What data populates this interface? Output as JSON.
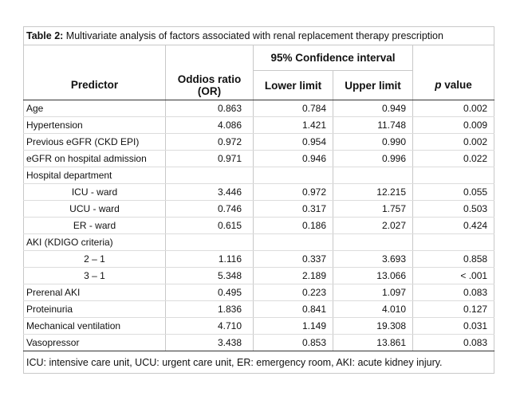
{
  "caption": {
    "label": "Table 2:",
    "text": "Multivariate analysis of factors associated with renal replacement therapy prescription"
  },
  "header": {
    "ci_group": "95% Confidence interval",
    "predictor": "Predictor",
    "odds_ratio": "Oddios ratio (OR)",
    "lower": "Lower limit",
    "upper": "Upper limit",
    "p_value_italic": "p",
    "p_value_rest": " value"
  },
  "rows": [
    {
      "predictor": "Age",
      "indent": false,
      "or": "0.863",
      "lower": "0.784",
      "upper": "0.949",
      "p": "0.002"
    },
    {
      "predictor": "Hypertension",
      "indent": false,
      "or": "4.086",
      "lower": "1.421",
      "upper": "11.748",
      "p": "0.009"
    },
    {
      "predictor": "Previous eGFR (CKD EPI)",
      "indent": false,
      "or": "0.972",
      "lower": "0.954",
      "upper": "0.990",
      "p": "0.002"
    },
    {
      "predictor": "eGFR on hospital admission",
      "indent": false,
      "or": "0.971",
      "lower": "0.946",
      "upper": "0.996",
      "p": "0.022"
    },
    {
      "predictor": "Hospital department",
      "indent": false,
      "or": "",
      "lower": "",
      "upper": "",
      "p": ""
    },
    {
      "predictor": "ICU - ward",
      "indent": true,
      "or": "3.446",
      "lower": "0.972",
      "upper": "12.215",
      "p": "0.055"
    },
    {
      "predictor": "UCU - ward",
      "indent": true,
      "or": "0.746",
      "lower": "0.317",
      "upper": "1.757",
      "p": "0.503"
    },
    {
      "predictor": "ER - ward",
      "indent": true,
      "or": "0.615",
      "lower": "0.186",
      "upper": "2.027",
      "p": "0.424"
    },
    {
      "predictor": "AKI (KDIGO criteria)",
      "indent": false,
      "or": "",
      "lower": "",
      "upper": "",
      "p": ""
    },
    {
      "predictor": "2 – 1",
      "indent": true,
      "or": "1.116",
      "lower": "0.337",
      "upper": "3.693",
      "p": "0.858"
    },
    {
      "predictor": "3 – 1",
      "indent": true,
      "or": "5.348",
      "lower": "2.189",
      "upper": "13.066",
      "p": "< .001"
    },
    {
      "predictor": "Prerenal AKI",
      "indent": false,
      "or": "0.495",
      "lower": "0.223",
      "upper": "1.097",
      "p": "0.083"
    },
    {
      "predictor": "Proteinuria",
      "indent": false,
      "or": "1.836",
      "lower": "0.841",
      "upper": "4.010",
      "p": "0.127"
    },
    {
      "predictor": "Mechanical ventilation",
      "indent": false,
      "or": "4.710",
      "lower": "1.149",
      "upper": "19.308",
      "p": "0.031"
    },
    {
      "predictor": "Vasopressor",
      "indent": false,
      "or": "3.438",
      "lower": "0.853",
      "upper": "13.861",
      "p": "0.083"
    }
  ],
  "footnote": "ICU: intensive care unit, UCU: urgent care unit, ER: emergency room, AKI: acute kidney injury."
}
